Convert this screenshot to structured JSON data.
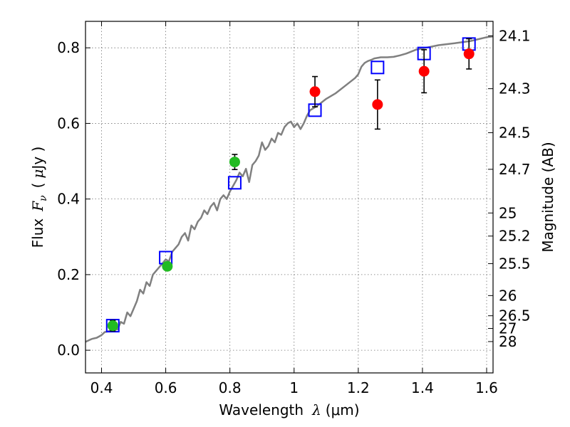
{
  "chart_data": {
    "type": "scatter",
    "x_axis": {
      "label_prefix": "Wavelength",
      "label_symbol": "λ",
      "label_unit": "(μm)",
      "range": [
        0.35,
        1.62
      ],
      "ticks": [
        0.4,
        0.6,
        0.8,
        1.0,
        1.2,
        1.4,
        1.6
      ],
      "tick_labels": [
        "0.4",
        "0.6",
        "0.8",
        "1",
        "1.2",
        "1.4",
        "1.6"
      ]
    },
    "y_axis": {
      "label_prefix": "Flux",
      "label_symbol": "F",
      "label_subscript": "ν",
      "label_unit_open": "(",
      "label_unit_mu": "μ",
      "label_unit_rest": "Jy )",
      "range": [
        -0.06,
        0.87
      ],
      "ticks": [
        0.0,
        0.2,
        0.4,
        0.6,
        0.8
      ],
      "tick_labels": [
        "0.0",
        "0.2",
        "0.4",
        "0.6",
        "0.8"
      ]
    },
    "right_axis": {
      "label": "Magnitude (AB)",
      "ticks": [
        {
          "mag": 24.1,
          "label": "24.1"
        },
        {
          "mag": 24.3,
          "label": "24.3"
        },
        {
          "mag": 24.5,
          "label": "24.5"
        },
        {
          "mag": 24.7,
          "label": "24.7"
        },
        {
          "mag": 25,
          "label": "25"
        },
        {
          "mag": 25.2,
          "label": "25.2"
        },
        {
          "mag": 25.5,
          "label": "25.5"
        },
        {
          "mag": 26,
          "label": "26"
        },
        {
          "mag": 26.5,
          "label": "26.5"
        },
        {
          "mag": 27,
          "label": "27"
        },
        {
          "mag": 28,
          "label": "28"
        }
      ]
    },
    "grid": true,
    "series": [
      {
        "kind": "model-spectrum",
        "color": "#808080",
        "x": [
          0.35,
          0.37,
          0.385,
          0.4,
          0.41,
          0.42,
          0.435,
          0.45,
          0.46,
          0.47,
          0.48,
          0.49,
          0.5,
          0.51,
          0.52,
          0.53,
          0.54,
          0.55,
          0.56,
          0.57,
          0.58,
          0.59,
          0.6,
          0.61,
          0.62,
          0.63,
          0.64,
          0.65,
          0.66,
          0.67,
          0.68,
          0.69,
          0.7,
          0.71,
          0.72,
          0.73,
          0.74,
          0.75,
          0.76,
          0.77,
          0.78,
          0.79,
          0.8,
          0.81,
          0.82,
          0.83,
          0.84,
          0.85,
          0.86,
          0.87,
          0.88,
          0.89,
          0.9,
          0.91,
          0.92,
          0.93,
          0.94,
          0.95,
          0.96,
          0.97,
          0.98,
          0.99,
          1.0,
          1.01,
          1.02,
          1.03,
          1.04,
          1.05,
          1.07,
          1.1,
          1.13,
          1.16,
          1.19,
          1.2,
          1.21,
          1.22,
          1.23,
          1.24,
          1.25,
          1.27,
          1.29,
          1.31,
          1.33,
          1.35,
          1.38,
          1.41,
          1.45,
          1.5,
          1.55,
          1.6,
          1.62
        ],
        "y": [
          0.022,
          0.03,
          0.033,
          0.04,
          0.048,
          0.05,
          0.054,
          0.055,
          0.075,
          0.07,
          0.1,
          0.09,
          0.11,
          0.13,
          0.16,
          0.15,
          0.18,
          0.17,
          0.2,
          0.21,
          0.22,
          0.23,
          0.24,
          0.235,
          0.26,
          0.27,
          0.28,
          0.3,
          0.31,
          0.29,
          0.33,
          0.32,
          0.34,
          0.35,
          0.37,
          0.36,
          0.38,
          0.39,
          0.37,
          0.4,
          0.41,
          0.4,
          0.42,
          0.435,
          0.45,
          0.47,
          0.46,
          0.48,
          0.445,
          0.49,
          0.5,
          0.515,
          0.55,
          0.53,
          0.54,
          0.56,
          0.55,
          0.575,
          0.57,
          0.59,
          0.6,
          0.605,
          0.59,
          0.6,
          0.585,
          0.6,
          0.62,
          0.635,
          0.645,
          0.665,
          0.68,
          0.7,
          0.72,
          0.73,
          0.75,
          0.76,
          0.765,
          0.768,
          0.772,
          0.775,
          0.775,
          0.776,
          0.78,
          0.785,
          0.795,
          0.8,
          0.807,
          0.812,
          0.818,
          0.828,
          0.83
        ]
      },
      {
        "kind": "model-photometry",
        "marker": "square",
        "color": "#0000ff",
        "x": [
          0.435,
          0.6,
          0.815,
          1.065,
          1.26,
          1.405,
          1.545
        ],
        "y": [
          0.065,
          0.245,
          0.443,
          0.635,
          0.748,
          0.785,
          0.81
        ]
      },
      {
        "kind": "observed-optical",
        "marker": "circle",
        "color": "#22bb22",
        "x": [
          0.435,
          0.605,
          0.815
        ],
        "y": [
          0.065,
          0.222,
          0.498
        ],
        "yerr": [
          0.014,
          0.01,
          0.02
        ]
      },
      {
        "kind": "observed-nir",
        "marker": "circle",
        "color": "#ff0000",
        "x": [
          1.065,
          1.26,
          1.405,
          1.545
        ],
        "y": [
          0.684,
          0.65,
          0.738,
          0.784
        ],
        "yerr": [
          0.04,
          0.065,
          0.057,
          0.04
        ]
      }
    ]
  }
}
